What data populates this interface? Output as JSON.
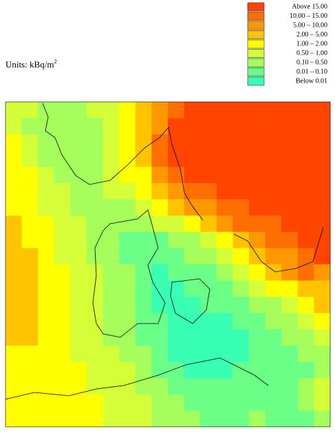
{
  "units": "Units: kBq/m",
  "units_exp": "2",
  "legend": [
    {
      "label": "Above 15.00",
      "color": "#ff4500"
    },
    {
      "label": "10.00 – 15.00",
      "color": "#ff6e00"
    },
    {
      "label": "5.00 – 10.00",
      "color": "#ff9800"
    },
    {
      "label": "2.00 – 5.00",
      "color": "#ffc400"
    },
    {
      "label": "1.00 – 2.00",
      "color": "#ffff00"
    },
    {
      "label": "0.50 – 1.00",
      "color": "#d4ff38"
    },
    {
      "label": "0.10 – 0.50",
      "color": "#a4ff5c"
    },
    {
      "label": "0.01 – 0.10",
      "color": "#6cff88"
    },
    {
      "label": "Below 0.01",
      "color": "#38ffb4"
    }
  ],
  "grid": [
    [
      5,
      5,
      6,
      6,
      6,
      5,
      5,
      4,
      3,
      2,
      1,
      0,
      0,
      0,
      0,
      0,
      0,
      0,
      0,
      0
    ],
    [
      5,
      6,
      6,
      6,
      6,
      6,
      5,
      4,
      3,
      2,
      0,
      0,
      0,
      0,
      0,
      0,
      0,
      0,
      0,
      0
    ],
    [
      4,
      5,
      6,
      6,
      6,
      6,
      5,
      4,
      3,
      1,
      0,
      0,
      0,
      0,
      0,
      0,
      0,
      0,
      0,
      0
    ],
    [
      4,
      5,
      6,
      6,
      6,
      6,
      5,
      4,
      3,
      1,
      0,
      0,
      0,
      0,
      0,
      0,
      0,
      0,
      0,
      0
    ],
    [
      4,
      4,
      5,
      6,
      6,
      6,
      5,
      4,
      4,
      2,
      1,
      0,
      0,
      0,
      0,
      0,
      0,
      0,
      0,
      0
    ],
    [
      4,
      4,
      5,
      5,
      6,
      6,
      5,
      5,
      4,
      3,
      2,
      1,
      1,
      0,
      0,
      0,
      0,
      0,
      0,
      0
    ],
    [
      4,
      4,
      5,
      5,
      6,
      6,
      6,
      6,
      5,
      4,
      3,
      2,
      2,
      1,
      1,
      0,
      0,
      0,
      0,
      0
    ],
    [
      3,
      4,
      4,
      5,
      5,
      6,
      6,
      6,
      6,
      5,
      5,
      4,
      3,
      2,
      1,
      1,
      1,
      0,
      0,
      0
    ],
    [
      3,
      4,
      4,
      5,
      5,
      6,
      6,
      7,
      7,
      7,
      6,
      6,
      5,
      4,
      3,
      2,
      1,
      1,
      0,
      0
    ],
    [
      3,
      3,
      4,
      5,
      5,
      6,
      6,
      7,
      7,
      7,
      7,
      6,
      6,
      5,
      4,
      3,
      2,
      2,
      1,
      0
    ],
    [
      3,
      3,
      4,
      4,
      5,
      5,
      6,
      6,
      7,
      8,
      7,
      7,
      7,
      6,
      5,
      4,
      3,
      2,
      1,
      2
    ],
    [
      3,
      3,
      4,
      4,
      5,
      5,
      6,
      6,
      7,
      8,
      8,
      7,
      7,
      7,
      6,
      5,
      4,
      4,
      3,
      3
    ],
    [
      3,
      3,
      4,
      4,
      5,
      5,
      6,
      6,
      7,
      8,
      8,
      8,
      7,
      7,
      7,
      6,
      6,
      5,
      4,
      3
    ],
    [
      3,
      3,
      4,
      4,
      5,
      5,
      6,
      6,
      7,
      7,
      8,
      8,
      8,
      8,
      7,
      7,
      6,
      6,
      5,
      4
    ],
    [
      3,
      3,
      4,
      4,
      5,
      5,
      6,
      6,
      7,
      7,
      8,
      8,
      8,
      8,
      8,
      7,
      7,
      6,
      6,
      5
    ],
    [
      4,
      4,
      4,
      4,
      5,
      5,
      5,
      6,
      6,
      7,
      8,
      8,
      8,
      8,
      8,
      7,
      7,
      7,
      6,
      6
    ],
    [
      4,
      4,
      4,
      4,
      4,
      5,
      5,
      5,
      6,
      7,
      7,
      8,
      8,
      8,
      7,
      7,
      7,
      7,
      7,
      6
    ],
    [
      4,
      4,
      4,
      4,
      4,
      5,
      5,
      5,
      6,
      6,
      7,
      7,
      7,
      7,
      7,
      7,
      7,
      7,
      6,
      5
    ],
    [
      4,
      4,
      4,
      4,
      4,
      4,
      5,
      5,
      5,
      6,
      6,
      7,
      7,
      7,
      7,
      7,
      7,
      7,
      6,
      5
    ],
    [
      4,
      4,
      4,
      4,
      4,
      4,
      5,
      5,
      5,
      6,
      6,
      6,
      7,
      7,
      7,
      6,
      7,
      7,
      7,
      6
    ]
  ]
}
